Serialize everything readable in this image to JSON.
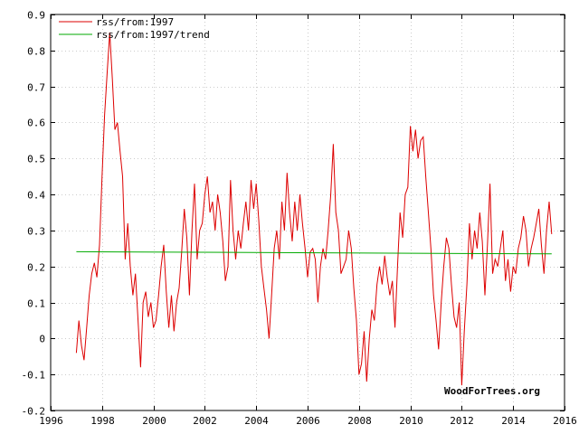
{
  "chart_data": {
    "type": "line",
    "title": "",
    "xlabel": "",
    "ylabel": "",
    "xlim": [
      1996,
      2016
    ],
    "ylim": [
      -0.2,
      0.9
    ],
    "x_ticks": [
      1996,
      1998,
      2000,
      2002,
      2004,
      2006,
      2008,
      2010,
      2012,
      2014,
      2016
    ],
    "y_ticks": [
      -0.2,
      -0.1,
      0,
      0.1,
      0.2,
      0.3,
      0.4,
      0.5,
      0.6,
      0.7,
      0.8,
      0.9
    ],
    "grid": true,
    "legend_position": "top-left",
    "credit": "WoodForTrees.org",
    "series": [
      {
        "name": "rss/from:1997",
        "color": "#dd0000",
        "points": [
          [
            1997.0,
            -0.04
          ],
          [
            1997.1,
            0.05
          ],
          [
            1997.2,
            -0.02
          ],
          [
            1997.3,
            -0.06
          ],
          [
            1997.4,
            0.03
          ],
          [
            1997.5,
            0.12
          ],
          [
            1997.6,
            0.18
          ],
          [
            1997.7,
            0.21
          ],
          [
            1997.8,
            0.17
          ],
          [
            1997.9,
            0.26
          ],
          [
            1998.0,
            0.45
          ],
          [
            1998.1,
            0.62
          ],
          [
            1998.2,
            0.74
          ],
          [
            1998.3,
            0.85
          ],
          [
            1998.4,
            0.72
          ],
          [
            1998.5,
            0.58
          ],
          [
            1998.6,
            0.6
          ],
          [
            1998.7,
            0.52
          ],
          [
            1998.8,
            0.45
          ],
          [
            1998.9,
            0.22
          ],
          [
            1999.0,
            0.32
          ],
          [
            1999.1,
            0.2
          ],
          [
            1999.2,
            0.12
          ],
          [
            1999.3,
            0.18
          ],
          [
            1999.4,
            0.05
          ],
          [
            1999.5,
            -0.08
          ],
          [
            1999.6,
            0.1
          ],
          [
            1999.7,
            0.13
          ],
          [
            1999.8,
            0.06
          ],
          [
            1999.9,
            0.1
          ],
          [
            2000.0,
            0.03
          ],
          [
            2000.1,
            0.05
          ],
          [
            2000.2,
            0.12
          ],
          [
            2000.3,
            0.2
          ],
          [
            2000.4,
            0.26
          ],
          [
            2000.5,
            0.13
          ],
          [
            2000.6,
            0.03
          ],
          [
            2000.7,
            0.12
          ],
          [
            2000.8,
            0.02
          ],
          [
            2000.9,
            0.1
          ],
          [
            2001.0,
            0.14
          ],
          [
            2001.1,
            0.24
          ],
          [
            2001.2,
            0.36
          ],
          [
            2001.3,
            0.28
          ],
          [
            2001.4,
            0.12
          ],
          [
            2001.5,
            0.3
          ],
          [
            2001.6,
            0.43
          ],
          [
            2001.7,
            0.22
          ],
          [
            2001.8,
            0.3
          ],
          [
            2001.9,
            0.32
          ],
          [
            2002.0,
            0.4
          ],
          [
            2002.1,
            0.45
          ],
          [
            2002.2,
            0.35
          ],
          [
            2002.3,
            0.38
          ],
          [
            2002.4,
            0.3
          ],
          [
            2002.5,
            0.4
          ],
          [
            2002.6,
            0.35
          ],
          [
            2002.7,
            0.27
          ],
          [
            2002.8,
            0.16
          ],
          [
            2002.9,
            0.2
          ],
          [
            2003.0,
            0.44
          ],
          [
            2003.1,
            0.3
          ],
          [
            2003.2,
            0.22
          ],
          [
            2003.3,
            0.3
          ],
          [
            2003.4,
            0.25
          ],
          [
            2003.5,
            0.32
          ],
          [
            2003.6,
            0.38
          ],
          [
            2003.7,
            0.3
          ],
          [
            2003.8,
            0.44
          ],
          [
            2003.9,
            0.36
          ],
          [
            2004.0,
            0.43
          ],
          [
            2004.1,
            0.33
          ],
          [
            2004.2,
            0.2
          ],
          [
            2004.3,
            0.14
          ],
          [
            2004.4,
            0.08
          ],
          [
            2004.5,
            0.0
          ],
          [
            2004.6,
            0.12
          ],
          [
            2004.7,
            0.25
          ],
          [
            2004.8,
            0.3
          ],
          [
            2004.9,
            0.22
          ],
          [
            2005.0,
            0.38
          ],
          [
            2005.1,
            0.3
          ],
          [
            2005.2,
            0.46
          ],
          [
            2005.3,
            0.35
          ],
          [
            2005.4,
            0.27
          ],
          [
            2005.5,
            0.38
          ],
          [
            2005.6,
            0.3
          ],
          [
            2005.7,
            0.4
          ],
          [
            2005.8,
            0.32
          ],
          [
            2005.9,
            0.25
          ],
          [
            2006.0,
            0.17
          ],
          [
            2006.1,
            0.24
          ],
          [
            2006.2,
            0.25
          ],
          [
            2006.3,
            0.22
          ],
          [
            2006.4,
            0.1
          ],
          [
            2006.5,
            0.2
          ],
          [
            2006.6,
            0.25
          ],
          [
            2006.7,
            0.22
          ],
          [
            2006.8,
            0.3
          ],
          [
            2006.9,
            0.4
          ],
          [
            2007.0,
            0.54
          ],
          [
            2007.1,
            0.35
          ],
          [
            2007.2,
            0.3
          ],
          [
            2007.3,
            0.18
          ],
          [
            2007.4,
            0.2
          ],
          [
            2007.5,
            0.22
          ],
          [
            2007.6,
            0.3
          ],
          [
            2007.7,
            0.25
          ],
          [
            2007.8,
            0.14
          ],
          [
            2007.9,
            0.05
          ],
          [
            2008.0,
            -0.1
          ],
          [
            2008.1,
            -0.07
          ],
          [
            2008.2,
            0.02
          ],
          [
            2008.3,
            -0.12
          ],
          [
            2008.4,
            0.0
          ],
          [
            2008.5,
            0.08
          ],
          [
            2008.6,
            0.05
          ],
          [
            2008.7,
            0.15
          ],
          [
            2008.8,
            0.2
          ],
          [
            2008.9,
            0.15
          ],
          [
            2009.0,
            0.23
          ],
          [
            2009.1,
            0.17
          ],
          [
            2009.2,
            0.12
          ],
          [
            2009.3,
            0.16
          ],
          [
            2009.4,
            0.03
          ],
          [
            2009.5,
            0.2
          ],
          [
            2009.6,
            0.35
          ],
          [
            2009.7,
            0.28
          ],
          [
            2009.8,
            0.4
          ],
          [
            2009.9,
            0.42
          ],
          [
            2010.0,
            0.59
          ],
          [
            2010.1,
            0.52
          ],
          [
            2010.2,
            0.58
          ],
          [
            2010.3,
            0.5
          ],
          [
            2010.4,
            0.55
          ],
          [
            2010.5,
            0.56
          ],
          [
            2010.6,
            0.45
          ],
          [
            2010.7,
            0.35
          ],
          [
            2010.8,
            0.25
          ],
          [
            2010.9,
            0.12
          ],
          [
            2011.0,
            0.05
          ],
          [
            2011.1,
            -0.03
          ],
          [
            2011.2,
            0.1
          ],
          [
            2011.3,
            0.2
          ],
          [
            2011.4,
            0.28
          ],
          [
            2011.5,
            0.25
          ],
          [
            2011.6,
            0.15
          ],
          [
            2011.7,
            0.06
          ],
          [
            2011.8,
            0.03
          ],
          [
            2011.9,
            0.1
          ],
          [
            2012.0,
            -0.13
          ],
          [
            2012.1,
            0.02
          ],
          [
            2012.2,
            0.15
          ],
          [
            2012.3,
            0.32
          ],
          [
            2012.4,
            0.22
          ],
          [
            2012.5,
            0.3
          ],
          [
            2012.6,
            0.25
          ],
          [
            2012.7,
            0.35
          ],
          [
            2012.8,
            0.27
          ],
          [
            2012.9,
            0.12
          ],
          [
            2013.0,
            0.26
          ],
          [
            2013.1,
            0.43
          ],
          [
            2013.2,
            0.18
          ],
          [
            2013.3,
            0.22
          ],
          [
            2013.4,
            0.2
          ],
          [
            2013.5,
            0.25
          ],
          [
            2013.6,
            0.3
          ],
          [
            2013.7,
            0.16
          ],
          [
            2013.8,
            0.22
          ],
          [
            2013.9,
            0.13
          ],
          [
            2014.0,
            0.2
          ],
          [
            2014.1,
            0.18
          ],
          [
            2014.2,
            0.25
          ],
          [
            2014.3,
            0.28
          ],
          [
            2014.4,
            0.34
          ],
          [
            2014.5,
            0.3
          ],
          [
            2014.6,
            0.2
          ],
          [
            2014.7,
            0.25
          ],
          [
            2014.8,
            0.28
          ],
          [
            2014.9,
            0.32
          ],
          [
            2015.0,
            0.36
          ],
          [
            2015.1,
            0.26
          ],
          [
            2015.2,
            0.18
          ],
          [
            2015.3,
            0.3
          ],
          [
            2015.4,
            0.38
          ],
          [
            2015.5,
            0.29
          ]
        ]
      },
      {
        "name": "rss/from:1997/trend",
        "color": "#00aa00",
        "points": [
          [
            1997.0,
            0.241
          ],
          [
            2015.5,
            0.235
          ]
        ]
      }
    ]
  }
}
